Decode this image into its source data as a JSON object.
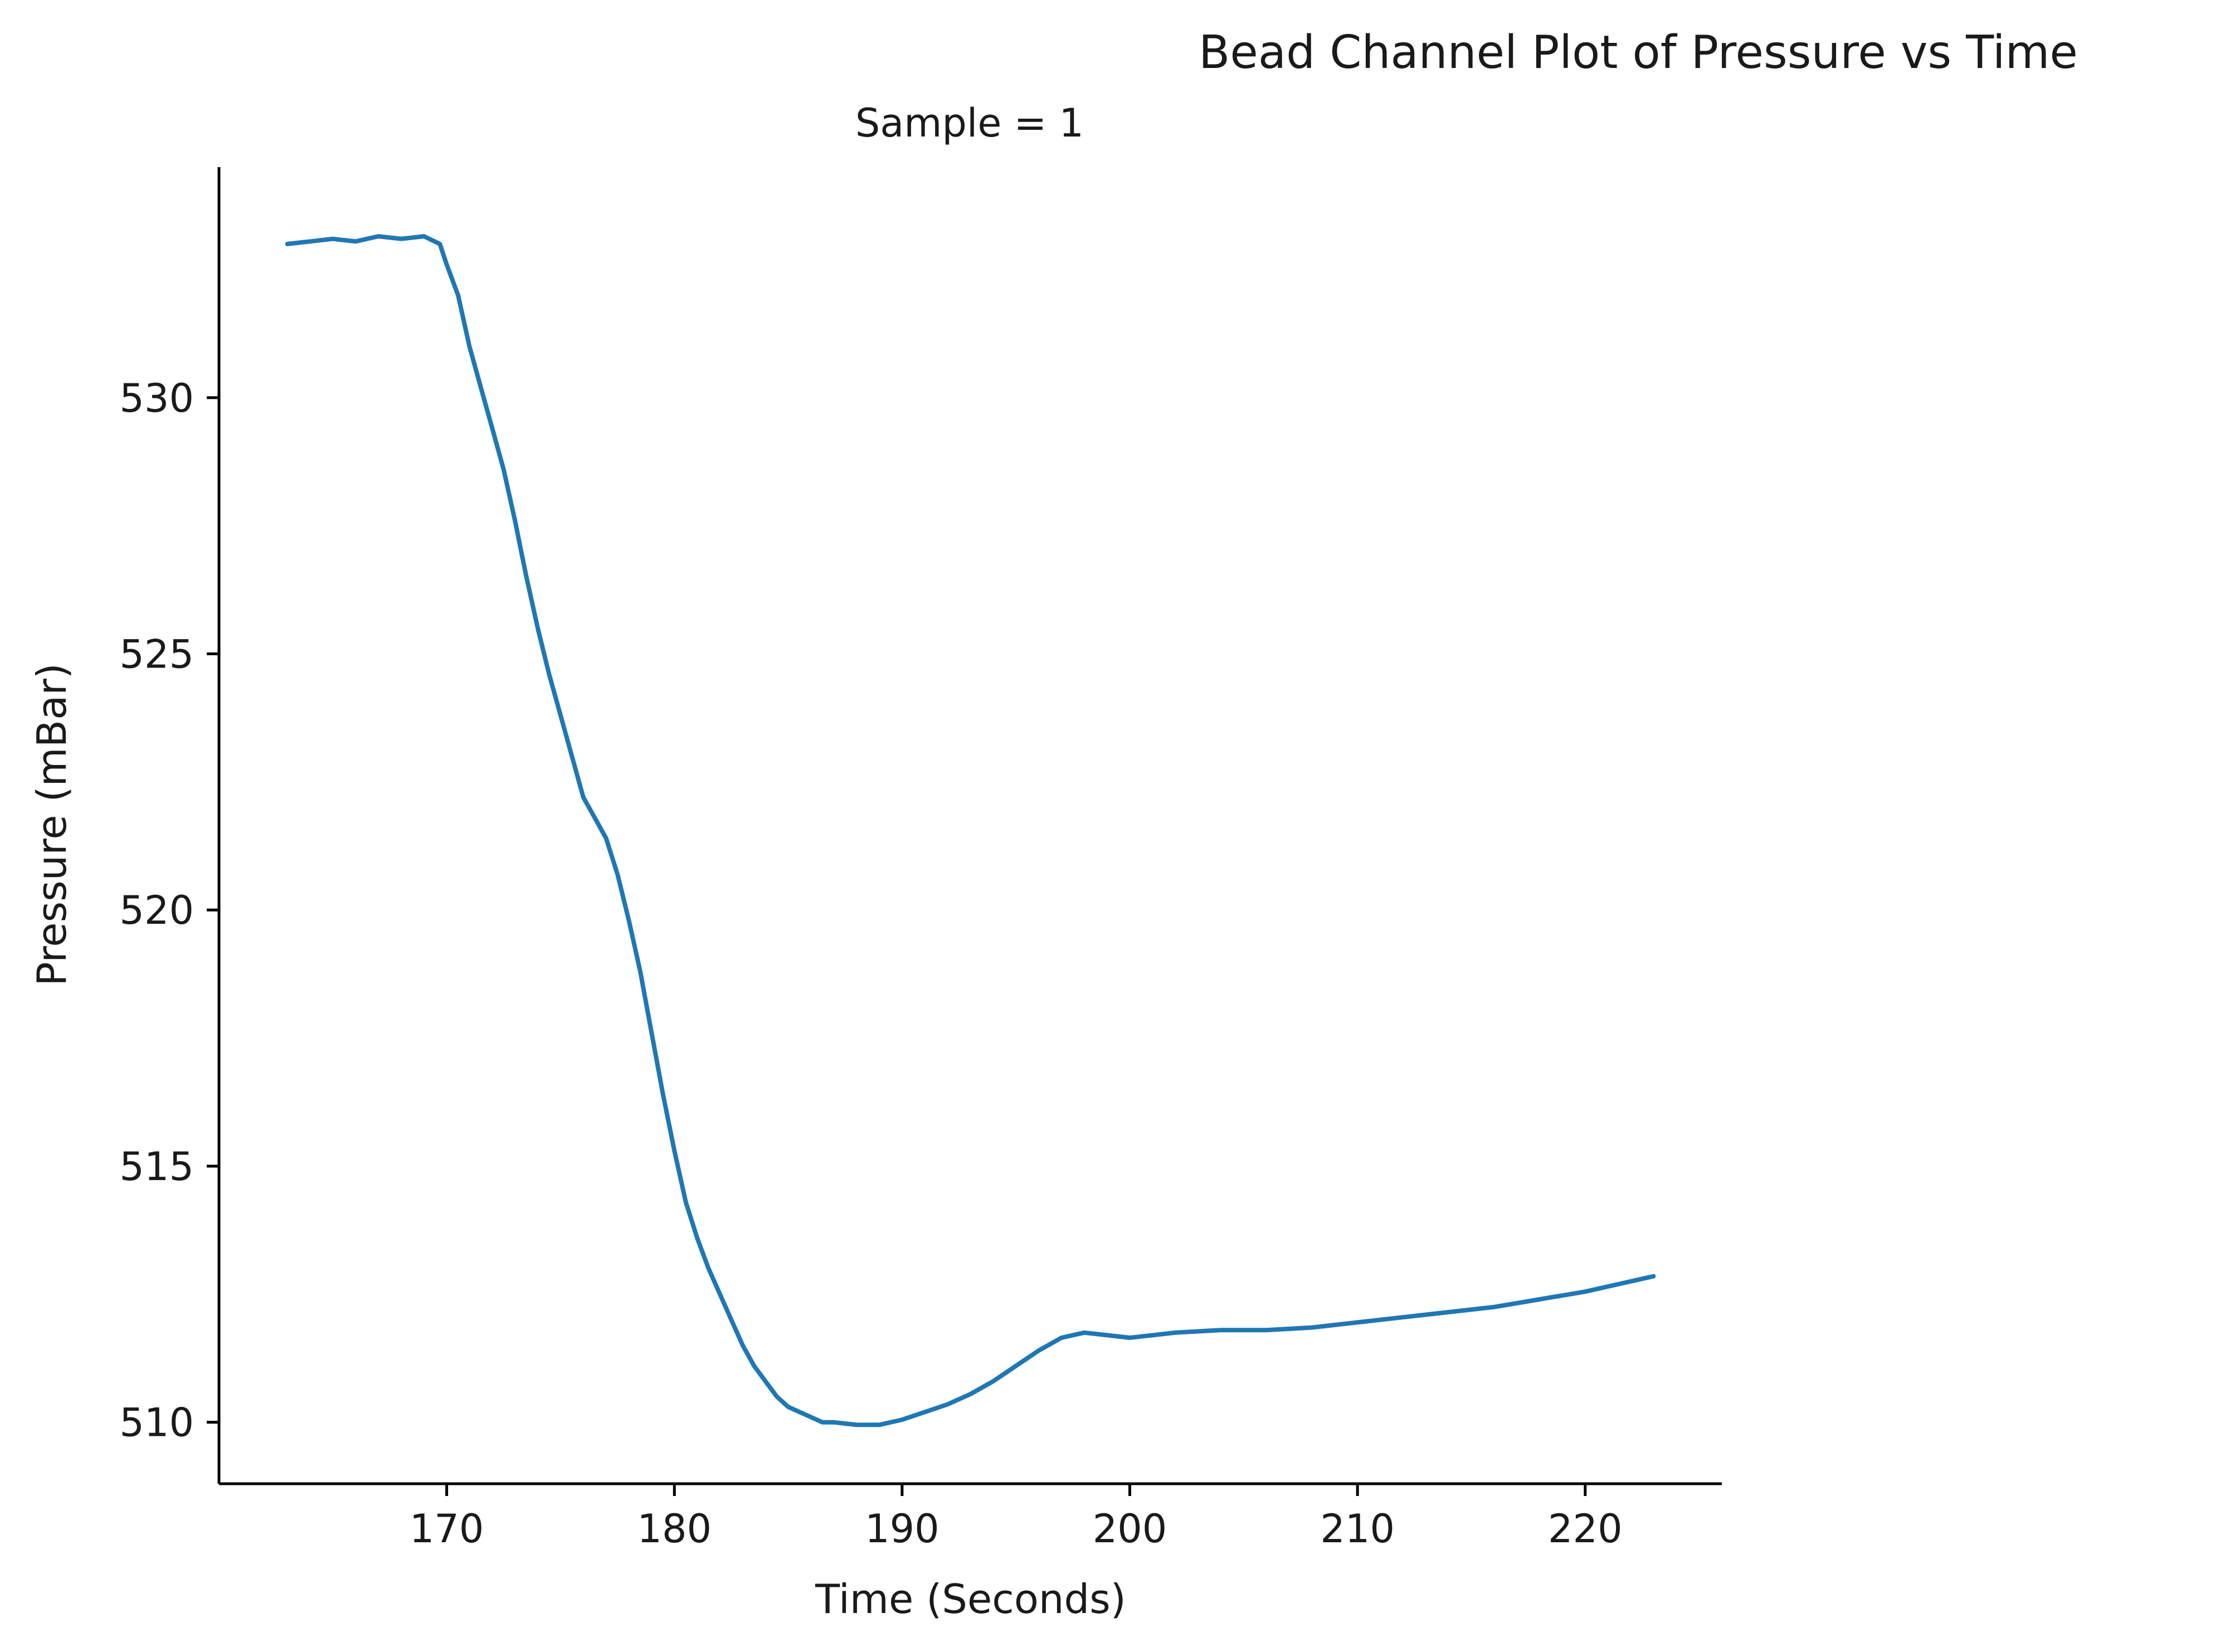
{
  "chart_data": {
    "type": "line",
    "title": "Bead Channel Plot of Pressure vs Time",
    "subtitle": "Sample = 1",
    "xlabel": "Time (Seconds)",
    "ylabel": "Pressure (mBar)",
    "xlim": [
      160,
      226
    ],
    "ylim": [
      508.8,
      534.5
    ],
    "x_ticks": [
      170,
      180,
      190,
      200,
      210,
      220
    ],
    "y_ticks": [
      510,
      515,
      520,
      525,
      530
    ],
    "grid": false,
    "legend": "none",
    "colors": {
      "line": "#1f77b4",
      "axis": "#000000"
    },
    "series": [
      {
        "x": [
          163,
          164,
          165,
          166,
          167,
          168,
          169,
          169.7,
          170,
          170.5,
          171,
          171.5,
          172,
          172.5,
          173,
          173.5,
          174,
          174.5,
          175,
          175.5,
          176,
          176.5,
          177,
          177.5,
          178,
          178.5,
          179,
          179.5,
          180,
          180.5,
          181,
          181.5,
          182,
          182.5,
          183,
          183.5,
          184,
          184.5,
          185,
          185.5,
          186,
          186.5,
          187,
          188,
          189,
          190,
          191,
          192,
          193,
          194,
          195,
          196,
          197,
          198,
          199,
          200,
          202,
          204,
          206,
          208,
          210,
          212,
          214,
          216,
          218,
          220,
          222,
          223
        ],
        "y": [
          533.0,
          533.05,
          533.1,
          533.05,
          533.15,
          533.1,
          533.15,
          533.0,
          532.6,
          532.0,
          531.0,
          530.2,
          529.4,
          528.6,
          527.6,
          526.5,
          525.5,
          524.6,
          523.8,
          523.0,
          522.2,
          521.8,
          521.4,
          520.7,
          519.8,
          518.8,
          517.6,
          516.4,
          515.3,
          514.3,
          513.6,
          513.0,
          512.5,
          512.0,
          511.5,
          511.1,
          510.8,
          510.5,
          510.3,
          510.2,
          510.1,
          510.0,
          510.0,
          509.95,
          509.95,
          510.05,
          510.2,
          510.35,
          510.55,
          510.8,
          511.1,
          511.4,
          511.65,
          511.75,
          511.7,
          511.65,
          511.75,
          511.8,
          511.8,
          511.85,
          511.95,
          512.05,
          512.15,
          512.25,
          512.4,
          512.55,
          512.75,
          512.85
        ]
      }
    ]
  }
}
